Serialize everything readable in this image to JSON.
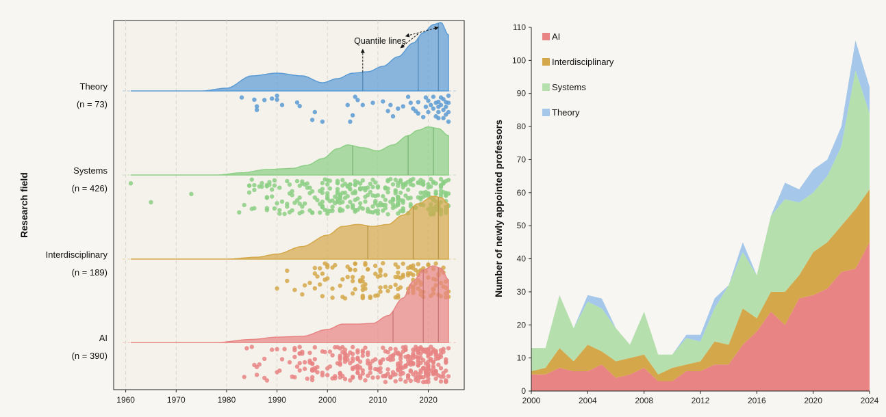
{
  "chart_data": [
    {
      "type": "ridgeline",
      "ylabel": "Research field",
      "xlim": [
        1959,
        2027
      ],
      "xticks": [
        1960,
        1970,
        1980,
        1990,
        2000,
        2010,
        2020
      ],
      "annotation": "Quantile lines",
      "groups": [
        {
          "name": "Theory",
          "n_label": "(n = 73)",
          "color": "#5b9bd5",
          "quantiles": [
            2007,
            2018,
            2022
          ],
          "density": [
            [
              1961,
              0
            ],
            [
              1975,
              0
            ],
            [
              1980,
              0.04
            ],
            [
              1985,
              0.22
            ],
            [
              1990,
              0.26
            ],
            [
              1995,
              0.22
            ],
            [
              1999,
              0.12
            ],
            [
              2002,
              0.18
            ],
            [
              2005,
              0.26
            ],
            [
              2008,
              0.28
            ],
            [
              2011,
              0.36
            ],
            [
              2014,
              0.5
            ],
            [
              2017,
              0.7
            ],
            [
              2019,
              0.85
            ],
            [
              2021,
              0.97
            ],
            [
              2022.5,
              1.0
            ],
            [
              2024,
              0.82
            ]
          ],
          "points": [
            [
              1983,
              0.07
            ],
            [
              1985.5,
              0.13
            ],
            [
              1986,
              0.32
            ],
            [
              1986,
              0.42
            ],
            [
              1987.5,
              0.14
            ],
            [
              1989,
              0.1
            ],
            [
              1990,
              0.02
            ],
            [
              1990,
              0.13
            ],
            [
              1991,
              0.28
            ],
            [
              1994,
              0.21
            ],
            [
              1994.5,
              0.31
            ],
            [
              1997,
              0.7
            ],
            [
              1997.5,
              0.48
            ],
            [
              1999,
              0.75
            ],
            [
              2004,
              0.28
            ],
            [
              2004.5,
              0.75
            ],
            [
              2005,
              0.57
            ],
            [
              2005.5,
              0.05
            ],
            [
              2006,
              0.14
            ],
            [
              2007,
              0.28
            ],
            [
              2009,
              0.22
            ],
            [
              2011,
              0.18
            ],
            [
              2012,
              0.45
            ],
            [
              2012.5,
              0.28
            ],
            [
              2013,
              0.6
            ],
            [
              2014,
              0.38
            ],
            [
              2015,
              0.32
            ],
            [
              2016,
              0.05
            ],
            [
              2016.5,
              0.22
            ],
            [
              2017,
              0.38
            ],
            [
              2017.5,
              0.45
            ],
            [
              2018,
              0.2
            ],
            [
              2018,
              0.52
            ],
            [
              2019,
              0.62
            ],
            [
              2019.5,
              0.33
            ],
            [
              2019.5,
              0.07
            ],
            [
              2020,
              0.16
            ],
            [
              2020,
              0.48
            ],
            [
              2020.5,
              0.28
            ],
            [
              2021,
              0.05
            ],
            [
              2021,
              0.38
            ],
            [
              2021.5,
              0.6
            ],
            [
              2022,
              0.19
            ],
            [
              2022,
              0.33
            ],
            [
              2022,
              0.48
            ],
            [
              2022.5,
              0.07
            ],
            [
              2022.5,
              0.28
            ],
            [
              2023,
              0.12
            ],
            [
              2023,
              0.42
            ],
            [
              2023,
              0.65
            ],
            [
              2023.5,
              0.2
            ],
            [
              2023.5,
              0.33
            ],
            [
              2024,
              0.02
            ],
            [
              2024,
              0.22
            ],
            [
              2024,
              0.48
            ],
            [
              2024,
              0.75
            ],
            [
              2022,
              0.65
            ],
            [
              2021.5,
              0.22
            ],
            [
              2023.5,
              0.55
            ]
          ]
        },
        {
          "name": "Systems",
          "n_label": "(n = 426)",
          "color": "#8ccf85",
          "quantiles": [
            2005,
            2016,
            2021
          ],
          "density": [
            [
              1961,
              0
            ],
            [
              1978,
              0
            ],
            [
              1983,
              0.04
            ],
            [
              1988,
              0.1
            ],
            [
              1993,
              0.12
            ],
            [
              1996,
              0.18
            ],
            [
              1999,
              0.3
            ],
            [
              2002,
              0.48
            ],
            [
              2004,
              0.55
            ],
            [
              2007,
              0.5
            ],
            [
              2010,
              0.44
            ],
            [
              2013,
              0.55
            ],
            [
              2016,
              0.72
            ],
            [
              2018,
              0.82
            ],
            [
              2020,
              0.88
            ],
            [
              2022,
              0.85
            ],
            [
              2024,
              0.72
            ]
          ],
          "points": [
            [
              1961,
              0.12
            ],
            [
              1965,
              0.65
            ],
            [
              1973,
              0.42
            ]
          ]
        },
        {
          "name": "Interdisciplinary",
          "n_label": "(n = 189)",
          "color": "#d4a84a",
          "quantiles": [
            2008,
            2017,
            2022
          ],
          "density": [
            [
              1961,
              0
            ],
            [
              1980,
              0
            ],
            [
              1986,
              0.03
            ],
            [
              1990,
              0.08
            ],
            [
              1995,
              0.2
            ],
            [
              2000,
              0.38
            ],
            [
              2003,
              0.52
            ],
            [
              2006,
              0.55
            ],
            [
              2009,
              0.52
            ],
            [
              2012,
              0.55
            ],
            [
              2015,
              0.7
            ],
            [
              2018,
              0.88
            ],
            [
              2021,
              1.0
            ],
            [
              2022.5,
              0.98
            ],
            [
              2024,
              0.88
            ]
          ],
          "points": []
        },
        {
          "name": "AI",
          "n_label": "(n = 390)",
          "color": "#e88484",
          "quantiles": [
            2013,
            2019,
            2022
          ],
          "density": [
            [
              1961,
              0
            ],
            [
              1978,
              0
            ],
            [
              1985,
              0.04
            ],
            [
              1990,
              0.07
            ],
            [
              1995,
              0.08
            ],
            [
              2000,
              0.17
            ],
            [
              2003,
              0.24
            ],
            [
              2006,
              0.24
            ],
            [
              2009,
              0.25
            ],
            [
              2012,
              0.35
            ],
            [
              2015,
              0.58
            ],
            [
              2017,
              0.8
            ],
            [
              2019,
              0.95
            ],
            [
              2021,
              1.0
            ],
            [
              2022.5,
              0.97
            ],
            [
              2024,
              0.82
            ]
          ],
          "points": []
        }
      ]
    },
    {
      "type": "area",
      "stacked": true,
      "ylabel": "Number of newly appointed professors",
      "xlim": [
        2000,
        2024
      ],
      "ylim": [
        0,
        110
      ],
      "xticks": [
        2000,
        2004,
        2008,
        2012,
        2016,
        2020,
        2024
      ],
      "yticks": [
        0,
        10,
        20,
        30,
        40,
        50,
        60,
        70,
        80,
        90,
        100,
        110
      ],
      "legend_position": "top-left",
      "x": [
        2000,
        2001,
        2002,
        2003,
        2004,
        2005,
        2006,
        2007,
        2008,
        2009,
        2010,
        2011,
        2012,
        2013,
        2014,
        2015,
        2016,
        2017,
        2018,
        2019,
        2020,
        2021,
        2022,
        2023,
        2024
      ],
      "series": [
        {
          "name": "AI",
          "color": "#e88484",
          "values": [
            5,
            5,
            7,
            6,
            6,
            8,
            4,
            5,
            7,
            3,
            3,
            6,
            6,
            8,
            8,
            14,
            18,
            24,
            20,
            28,
            29,
            31,
            36,
            37,
            45
          ]
        },
        {
          "name": "Interdisciplinary",
          "color": "#d4a84a",
          "values": [
            1,
            2,
            6,
            3,
            8,
            4,
            5,
            5,
            4,
            2,
            4,
            2,
            3,
            7,
            6,
            11,
            4,
            6,
            10,
            7,
            13,
            14,
            14,
            18,
            16
          ]
        },
        {
          "name": "Systems",
          "color": "#b5dfad",
          "values": [
            7,
            6,
            16,
            10,
            13,
            13,
            10,
            4,
            13,
            6,
            4,
            8,
            6,
            10,
            18,
            17,
            13,
            23,
            28,
            22,
            18,
            20,
            24,
            42,
            23
          ]
        },
        {
          "name": "Theory",
          "color": "#a5c8ea",
          "values": [
            0,
            0,
            0,
            0,
            2,
            3,
            0,
            0,
            0,
            0,
            0,
            1,
            2,
            3,
            0,
            3,
            0,
            0,
            5,
            4,
            7,
            5,
            6,
            9,
            8
          ]
        }
      ]
    }
  ]
}
